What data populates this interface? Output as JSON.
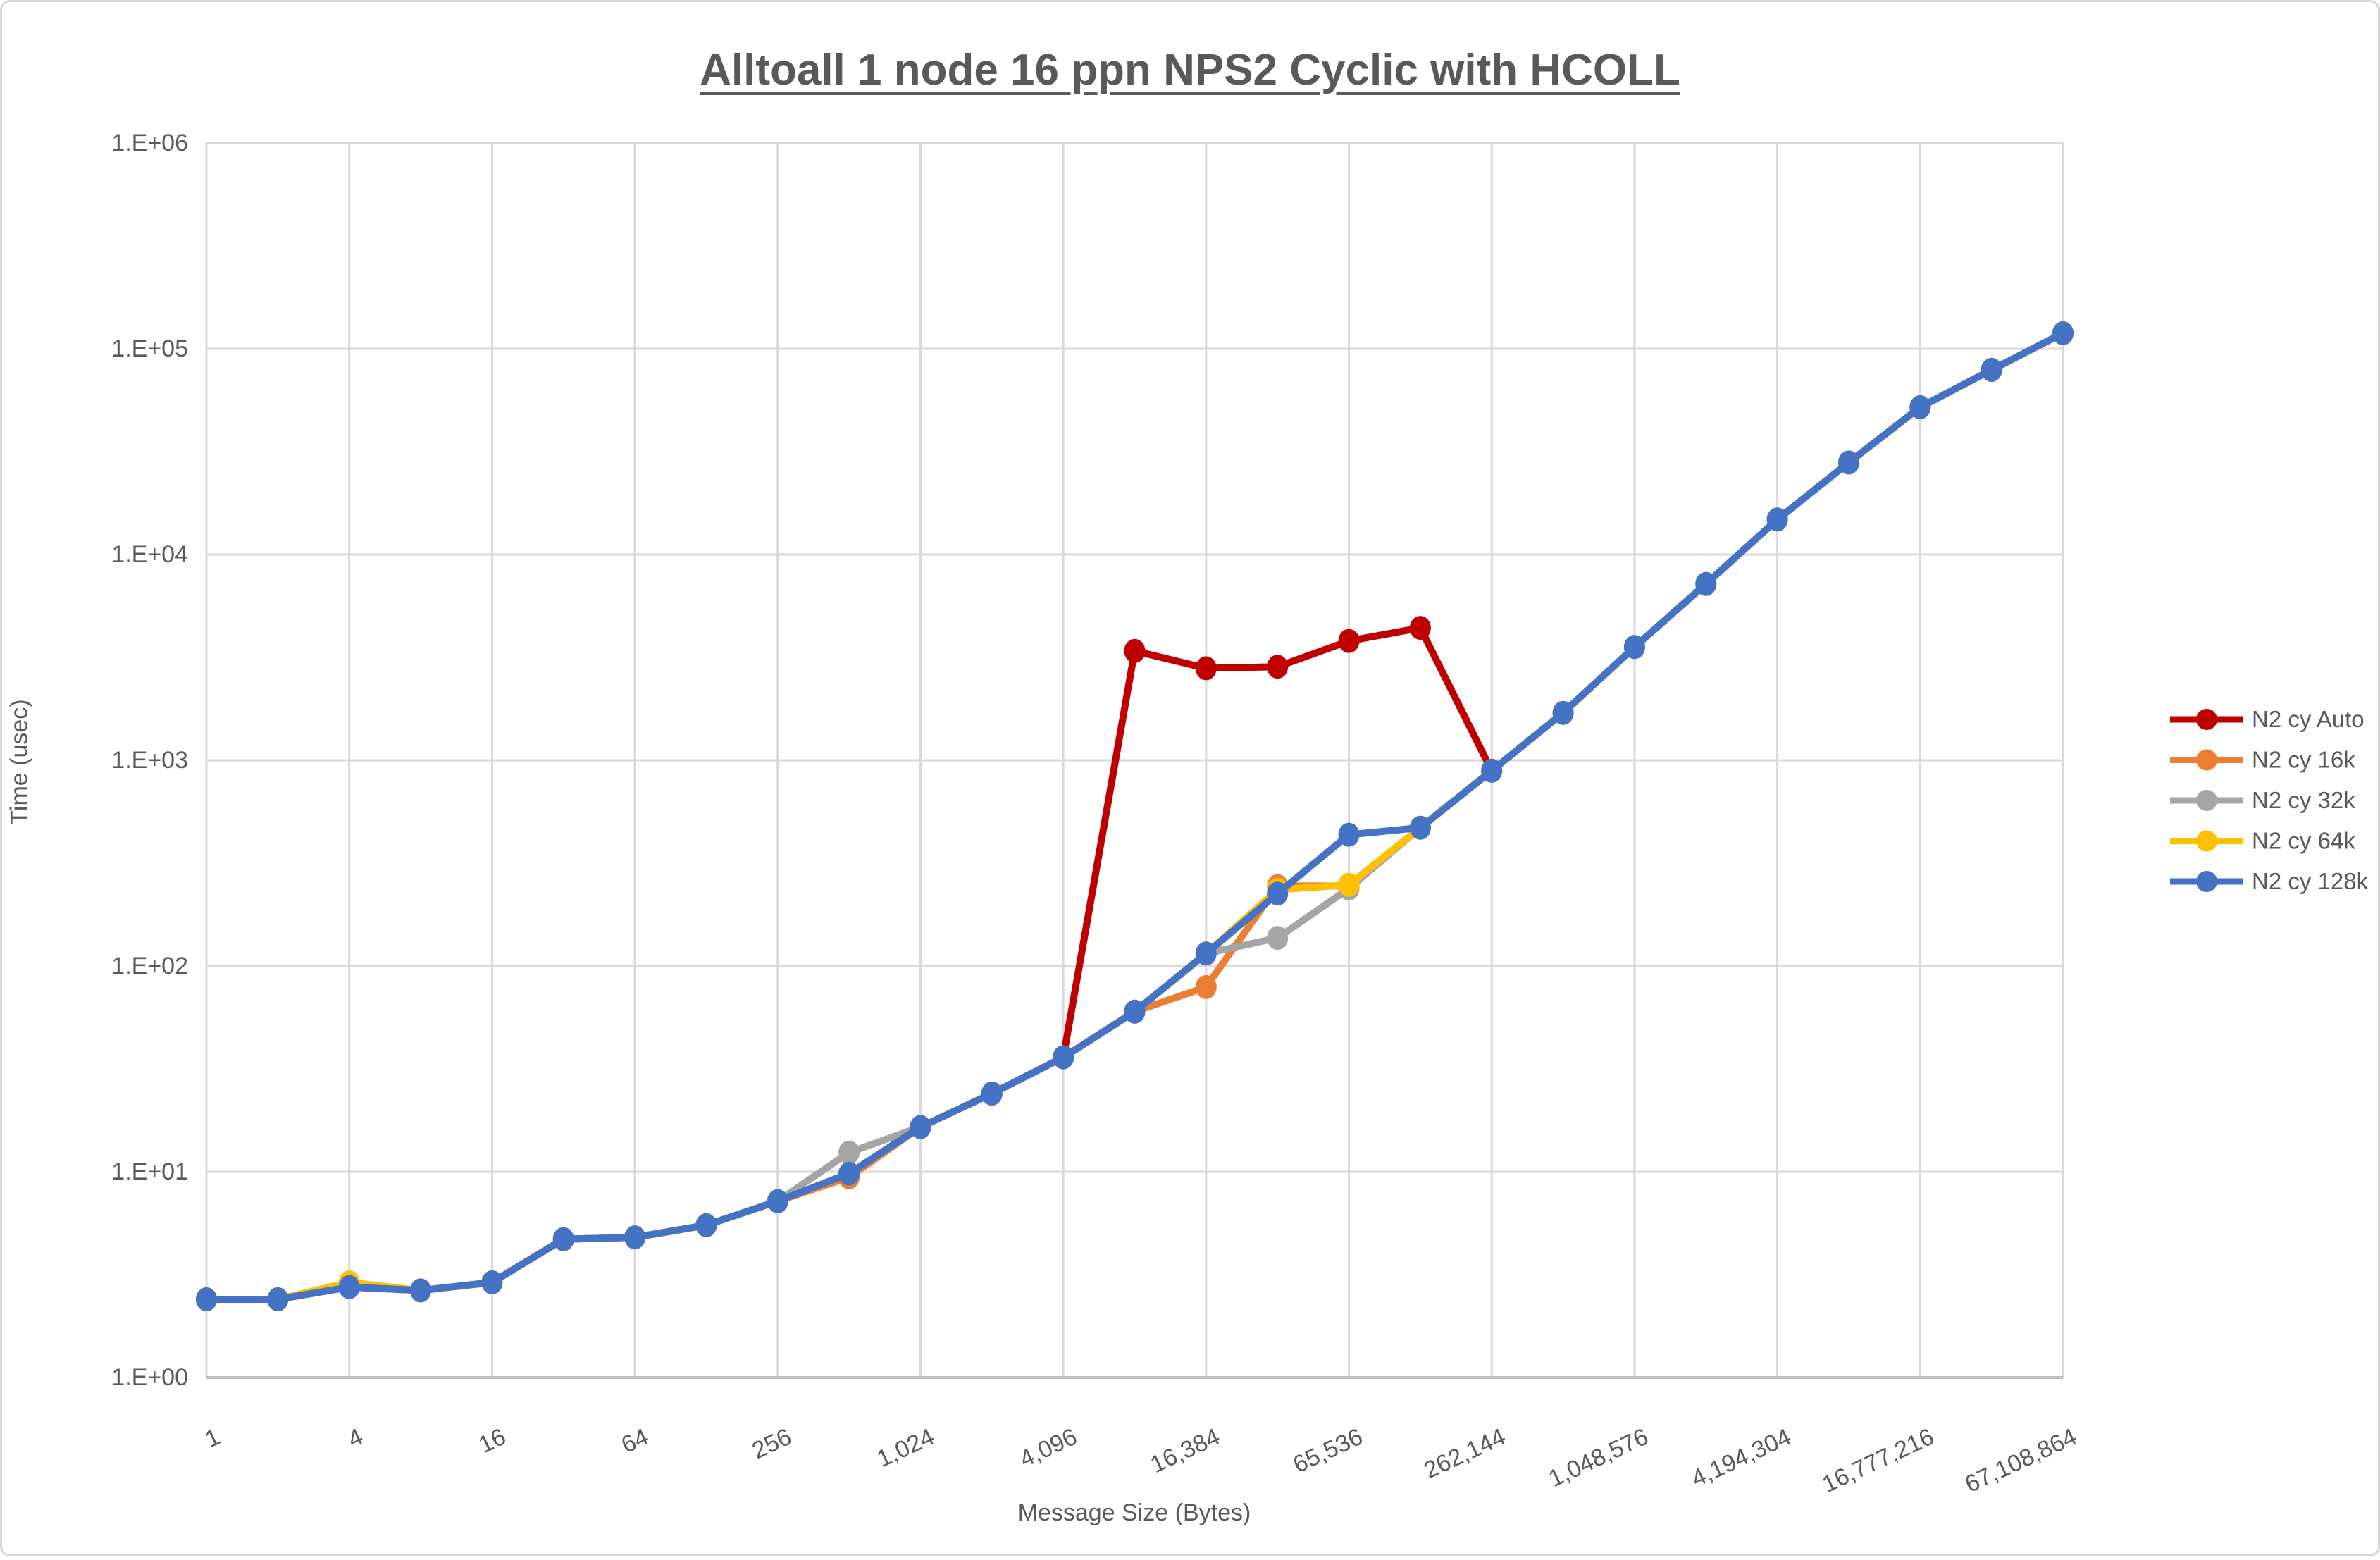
{
  "title": "Alltoall 1 node 16 ppn NPS2 Cyclic with HCOLL",
  "chart_data": {
    "type": "line",
    "x_axis": "log2 message sizes, one point per power of 2",
    "x": [
      1,
      2,
      4,
      8,
      16,
      32,
      64,
      128,
      256,
      512,
      1024,
      2048,
      4096,
      8192,
      16384,
      32768,
      65536,
      131072,
      262144,
      524288,
      1048576,
      2097152,
      4194304,
      8388608,
      16777216,
      33554432,
      67108864
    ],
    "x_tick_labels": [
      "1",
      "4",
      "16",
      "64",
      "256",
      "1,024",
      "4,096",
      "16,384",
      "65,536",
      "262,144",
      "1,048,576",
      "4,194,304",
      "16,777,216",
      "67,108,864"
    ],
    "xlabel": "Message Size (Bytes)",
    "ylabel": "Time (usec)",
    "y_tick_labels": [
      "1.E+00",
      "1.E+01",
      "1.E+02",
      "1.E+03",
      "1.E+04",
      "1.E+05",
      "1.E+06"
    ],
    "y_scale": "log10",
    "ylim": [
      1,
      1000000
    ],
    "grid": true,
    "legend_position": "right",
    "series": [
      {
        "name": "N2 cy Auto",
        "color": "#C00000",
        "values": [
          2.4,
          2.4,
          2.75,
          2.65,
          2.9,
          4.7,
          4.8,
          5.5,
          7.2,
          9.8,
          16.5,
          24,
          36,
          3400,
          2800,
          2850,
          3800,
          4400,
          890,
          null,
          null,
          null,
          null,
          null,
          null,
          null,
          null
        ]
      },
      {
        "name": "N2 cy 16k",
        "color": "#ED7D31",
        "values": [
          2.4,
          2.4,
          2.75,
          2.65,
          2.9,
          4.7,
          4.8,
          5.5,
          7.2,
          9.4,
          16.5,
          24,
          36,
          60,
          79,
          245,
          245,
          470,
          890,
          1700,
          3550,
          7200,
          14800,
          28000,
          52000,
          79000,
          119000
        ]
      },
      {
        "name": "N2 cy 32k",
        "color": "#A5A5A5",
        "values": [
          2.4,
          2.4,
          2.75,
          2.65,
          2.9,
          4.7,
          4.8,
          5.5,
          7.2,
          12.4,
          16.5,
          24,
          36,
          60,
          115,
          137,
          238,
          470,
          890,
          1700,
          3550,
          7200,
          14800,
          28000,
          52000,
          79000,
          119000
        ]
      },
      {
        "name": "N2 cy 64k",
        "color": "#FFC000",
        "values": [
          2.4,
          2.4,
          2.9,
          2.65,
          2.9,
          4.7,
          4.8,
          5.5,
          7.2,
          9.8,
          16.5,
          24,
          36,
          60,
          115,
          235,
          248,
          470,
          890,
          1700,
          3550,
          7200,
          14800,
          28000,
          52000,
          79000,
          119000
        ]
      },
      {
        "name": "N2 cy 128k",
        "color": "#4472C4",
        "values": [
          2.4,
          2.4,
          2.75,
          2.65,
          2.9,
          4.7,
          4.8,
          5.5,
          7.2,
          9.8,
          16.5,
          24,
          36,
          60,
          115,
          225,
          435,
          470,
          890,
          1700,
          3550,
          7200,
          14800,
          28000,
          52000,
          79000,
          119000
        ]
      }
    ]
  },
  "colors": {
    "text": "#595959",
    "gridline": "#D9D9D9",
    "axis_line": "#BFBFBF",
    "background": "#FFFFFF"
  }
}
